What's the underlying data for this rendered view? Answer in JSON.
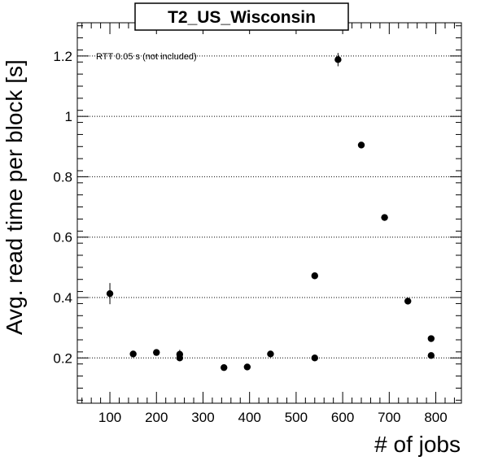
{
  "chart_data": {
    "type": "scatter",
    "title": "T2_US_Wisconsin",
    "xlabel": "# of jobs",
    "ylabel": "Avg. read time per block [s]",
    "annotation": "RTT 0.05 s (not included)",
    "xlim": [
      30,
      855
    ],
    "ylim": [
      0.05,
      1.31
    ],
    "x_ticks": [
      100,
      200,
      300,
      400,
      500,
      600,
      700,
      800
    ],
    "y_ticks": [
      0.2,
      0.4,
      0.6,
      0.8,
      1,
      1.2
    ],
    "x_tick_labels": [
      "100",
      "200",
      "300",
      "400",
      "500",
      "600",
      "700",
      "800"
    ],
    "y_tick_labels": [
      "0.2",
      "0.4",
      "0.6",
      "0.8",
      "1",
      "1.2"
    ],
    "grid": "horizontal dotted",
    "points": [
      {
        "x": 100,
        "y": 0.413,
        "err": 0.035
      },
      {
        "x": 150,
        "y": 0.213,
        "err": 0.006
      },
      {
        "x": 200,
        "y": 0.218,
        "err": 0.006
      },
      {
        "x": 250,
        "y": 0.212,
        "err": 0.015
      },
      {
        "x": 250,
        "y": 0.2,
        "err": 0.01
      },
      {
        "x": 345,
        "y": 0.168,
        "err": 0.004
      },
      {
        "x": 395,
        "y": 0.17,
        "err": 0.006
      },
      {
        "x": 445,
        "y": 0.213,
        "err": 0.004
      },
      {
        "x": 540,
        "y": 0.472,
        "err": 0.004
      },
      {
        "x": 540,
        "y": 0.2,
        "err": 0.004
      },
      {
        "x": 590,
        "y": 1.188,
        "err": 0.022
      },
      {
        "x": 640,
        "y": 0.905,
        "err": 0.01
      },
      {
        "x": 690,
        "y": 0.665,
        "err": 0.006
      },
      {
        "x": 740,
        "y": 0.388,
        "err": 0.004
      },
      {
        "x": 790,
        "y": 0.264,
        "err": 0.004
      },
      {
        "x": 790,
        "y": 0.208,
        "err": 0.004
      }
    ]
  }
}
